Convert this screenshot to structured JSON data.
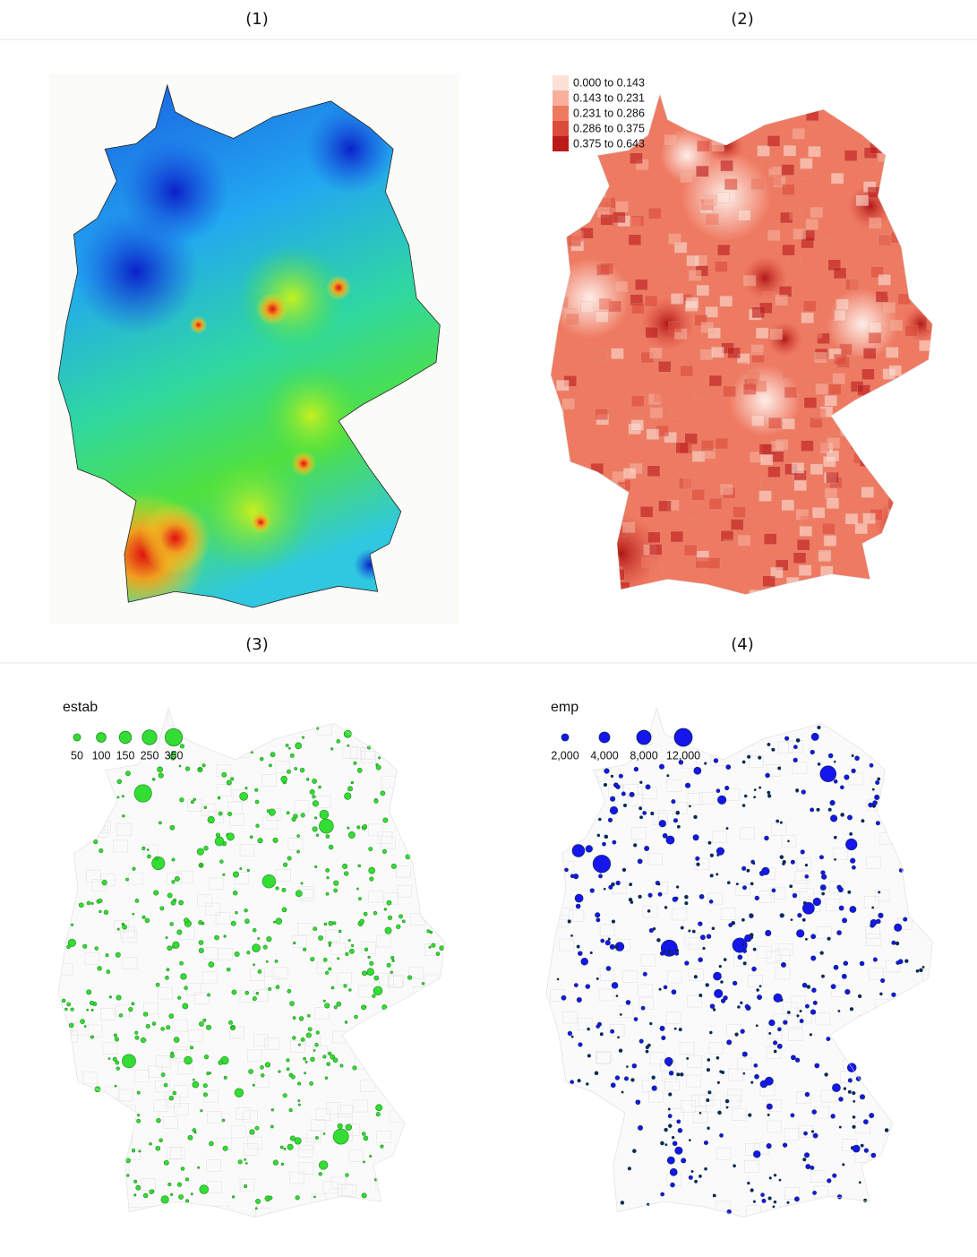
{
  "panels": [
    {
      "label": "(1)"
    },
    {
      "label": "(2)",
      "legend": {
        "items": [
          {
            "label": "0.000 to 0.143",
            "color": "#fde0d6"
          },
          {
            "label": "0.143 to 0.231",
            "color": "#f8b09c"
          },
          {
            "label": "0.231 to 0.286",
            "color": "#ef7a62"
          },
          {
            "label": "0.286 to 0.375",
            "color": "#dc4a3a"
          },
          {
            "label": "0.375 to 0.643",
            "color": "#bb1a1a"
          }
        ]
      }
    },
    {
      "label": "(3)",
      "legend": {
        "title": "estab",
        "items": [
          "50",
          "100",
          "150",
          "250",
          "350"
        ],
        "color": "#33dd33",
        "stroke": "#1f8a1f"
      }
    },
    {
      "label": "(4)",
      "legend": {
        "title": "emp",
        "items": [
          "2,000",
          "4,000",
          "8,000",
          "12,000"
        ],
        "color": "#1515ee",
        "stroke": "#0a2a55"
      }
    }
  ]
}
